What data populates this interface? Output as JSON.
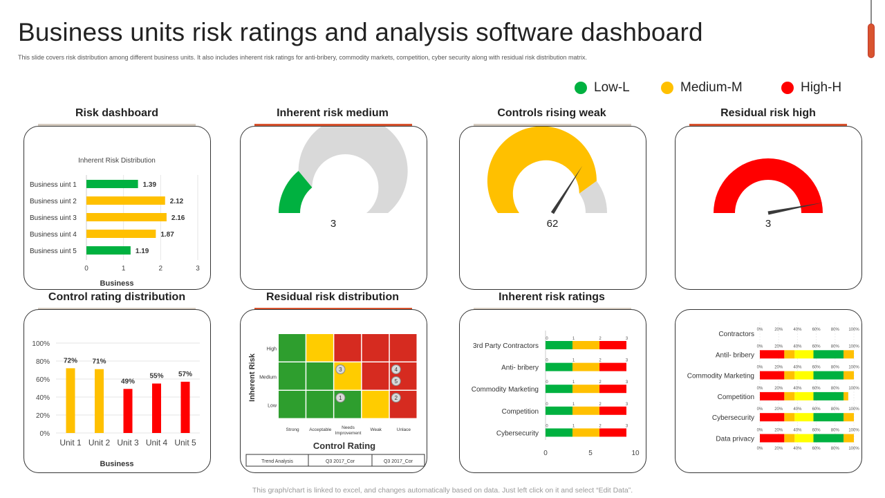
{
  "header": {
    "title": "Business units risk ratings and analysis software dashboard",
    "subtitle": "This slide covers risk distribution among different business units. It also includes inherent risk ratings for anti-bribery, commodity markets, competition, cyber security along with residual risk distribution matrix."
  },
  "legend": [
    {
      "label": "Low-L",
      "color": "#00b140"
    },
    {
      "label": "Medium-M",
      "color": "#ffc000"
    },
    {
      "label": "High-H",
      "color": "#ff0000"
    }
  ],
  "colors": {
    "green": "#00b140",
    "yellow": "#ffc000",
    "red": "#ff0000",
    "gray": "#d9d9d9",
    "underline_gray": "#d6ccc0",
    "underline_red": "#d9542f"
  },
  "panels": {
    "risk_dashboard": "Risk dashboard",
    "inherent_risk_medium": "Inherent risk medium",
    "controls_rising_weak": "Controls rising weak",
    "residual_risk_high": "Residual risk high",
    "control_rating_distribution": "Control rating distribution",
    "residual_risk_distribution": "Residual risk distribution",
    "inherent_risk_ratings": "Inherent risk ratings"
  },
  "footer": "This graph/chart is linked to excel, and changes automatically based on data. Just left click on it and select “Edit Data”.",
  "chart_data": [
    {
      "id": "inherent_risk_distribution",
      "type": "bar",
      "orientation": "horizontal",
      "title": "Inherent Risk Distribution",
      "xlabel": "Business",
      "categories": [
        "Business uint 1",
        "Business uint 2",
        "Business uint 3",
        "Business uint 4",
        "Business uint 5"
      ],
      "values": [
        1.39,
        2.12,
        2.16,
        1.87,
        1.19
      ],
      "bar_colors": [
        "#00b140",
        "#ffc000",
        "#ffc000",
        "#ffc000",
        "#00b140"
      ],
      "xlim": [
        0,
        3
      ],
      "xticks": [
        "0",
        "1",
        "2",
        "3"
      ]
    },
    {
      "id": "gauge_inherent_risk_medium",
      "type": "gauge",
      "value": 3,
      "label": "3",
      "fill_fraction": 0.28,
      "fill_color": "#00b140",
      "needle": false
    },
    {
      "id": "gauge_controls_rising_weak",
      "type": "gauge",
      "value": 62,
      "label": "62",
      "fill_fraction": 0.8,
      "fill_color": "#ffc000",
      "needle": true,
      "needle_fraction": 0.68
    },
    {
      "id": "gauge_residual_risk_high",
      "type": "gauge",
      "value": 3,
      "label": "3",
      "fill_fraction": 1.0,
      "fill_color": "#ff0000",
      "needle": true,
      "needle_fraction": 0.94
    },
    {
      "id": "control_rating_distribution",
      "type": "bar",
      "categories": [
        "Unit 1",
        "Unit 2",
        "Unit 3",
        "Unit 4",
        "Unit 5"
      ],
      "values": [
        72,
        71,
        49,
        55,
        57
      ],
      "value_labels": [
        "72%",
        "71%",
        "49%",
        "55%",
        "57%"
      ],
      "bar_colors": [
        "#ffc000",
        "#ffc000",
        "#ff0000",
        "#ff0000",
        "#ff0000"
      ],
      "ylim": [
        0,
        100
      ],
      "yticks": [
        "0%",
        "20%",
        "40%",
        "60%",
        "80%",
        "100%"
      ],
      "xlabel": "Business"
    },
    {
      "id": "residual_risk_matrix",
      "type": "heatmap",
      "ylabel": "Inherent Risk",
      "xlabel": "Control Rating",
      "rows": [
        "High",
        "Medium",
        "Low"
      ],
      "columns": [
        "Strong",
        "Acceptable",
        "Needs Improvement",
        "Weak",
        "Unlace"
      ],
      "cell_colors": [
        [
          "#2e9e2e",
          "#ffcc00",
          "#d62b20",
          "#d62b20",
          "#d62b20"
        ],
        [
          "#2e9e2e",
          "#2e9e2e",
          "#ffcc00",
          "#d62b20",
          "#d62b20"
        ],
        [
          "#2e9e2e",
          "#2e9e2e",
          "#2e9e2e",
          "#ffcc00",
          "#d62b20"
        ]
      ],
      "markers": [
        {
          "label": "3",
          "row": 1,
          "col": 2,
          "pos": "upper-left"
        },
        {
          "label": "4",
          "row": 1,
          "col": 4,
          "pos": "upper-left"
        },
        {
          "label": "5",
          "row": 1,
          "col": 4,
          "pos": "lower-left"
        },
        {
          "label": "1",
          "row": 2,
          "col": 2,
          "pos": "upper-left"
        },
        {
          "label": "2",
          "row": 2,
          "col": 4,
          "pos": "upper-left"
        }
      ],
      "table": [
        "Trend Analysis",
        "Q3 2017_Cor",
        "Q3 2017_Cor"
      ]
    },
    {
      "id": "inherent_risk_ratings",
      "type": "bar",
      "orientation": "horizontal",
      "stacked": true,
      "categories": [
        "3rd Party Contractors",
        "Anti- bribery",
        "Commodity Marketing",
        "Competition",
        "Cybersecurity"
      ],
      "series": [
        {
          "color": "#00b140",
          "values": [
            3,
            3,
            3,
            3,
            3
          ]
        },
        {
          "color": "#ffc000",
          "values": [
            3,
            3,
            3,
            3,
            3
          ]
        },
        {
          "color": "#ff0000",
          "values": [
            3,
            3,
            3,
            3,
            3
          ]
        }
      ],
      "mini_ticks": [
        "0",
        "1",
        "2",
        "3"
      ],
      "xlim": [
        0,
        10
      ],
      "xticks": [
        "0",
        "5",
        "10"
      ]
    },
    {
      "id": "risk_profile_percent",
      "type": "bar",
      "orientation": "horizontal",
      "stacked": true,
      "categories": [
        "Contractors",
        "Antil- bribery",
        "Commodity Marketing",
        "Competition",
        "Cybersecurity",
        "Data privacy"
      ],
      "xticks": [
        "0%",
        "20%",
        "40%",
        "60%",
        "80%",
        "100%"
      ],
      "series": [
        {
          "color": "#ff0000",
          "values": [
            0,
            26,
            26,
            26,
            26,
            26
          ]
        },
        {
          "color": "#ffc000",
          "values": [
            0,
            11,
            11,
            11,
            11,
            11
          ]
        },
        {
          "color": "#ffff00",
          "values": [
            0,
            20,
            20,
            20,
            20,
            20
          ]
        },
        {
          "color": "#00b140",
          "values": [
            0,
            32,
            32,
            32,
            32,
            32
          ]
        },
        {
          "color": "#ffc000",
          "values": [
            0,
            11,
            11,
            5,
            11,
            11
          ]
        }
      ]
    }
  ]
}
